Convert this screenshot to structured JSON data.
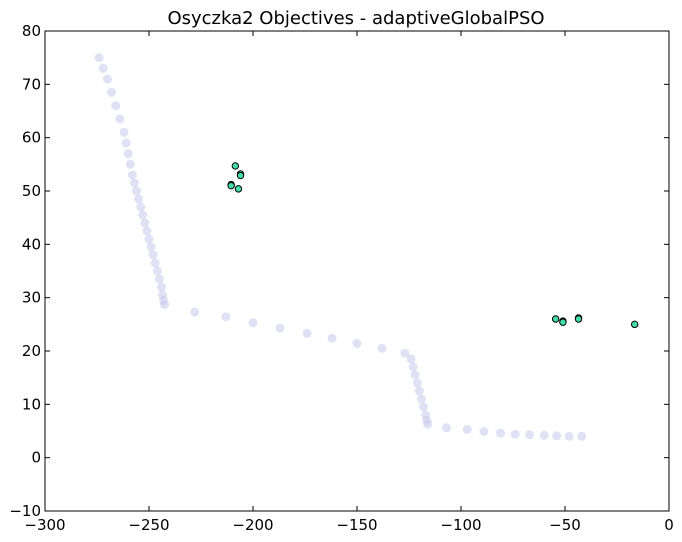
{
  "chart_data": {
    "type": "scatter",
    "title": "Osyczka2 Objectives - adaptiveGlobalPSO",
    "xlabel": "",
    "ylabel": "",
    "xlim": [
      -300,
      0
    ],
    "ylim": [
      -10,
      80
    ],
    "xticks": [
      -300,
      -250,
      -200,
      -150,
      -100,
      -50,
      0
    ],
    "yticks": [
      -10,
      0,
      10,
      20,
      30,
      40,
      50,
      60,
      70,
      80
    ],
    "grid": false,
    "legend": "none",
    "series": [
      {
        "role": "reference-front",
        "color": "#c8c8ec",
        "points": [
          [
            -274,
            75
          ],
          [
            -272,
            73
          ],
          [
            -270,
            71
          ],
          [
            -268,
            68.5
          ],
          [
            -266,
            66
          ],
          [
            -264,
            63.5
          ],
          [
            -262,
            61
          ],
          [
            -261,
            59
          ],
          [
            -260,
            57
          ],
          [
            -259,
            55
          ],
          [
            -258,
            53
          ],
          [
            -257,
            51.5
          ],
          [
            -256,
            50
          ],
          [
            -255,
            48.5
          ],
          [
            -254,
            47
          ],
          [
            -253,
            45.5
          ],
          [
            -252,
            44
          ],
          [
            -251,
            42.5
          ],
          [
            -250,
            41
          ],
          [
            -249,
            39.5
          ],
          [
            -248,
            38
          ],
          [
            -247,
            36.5
          ],
          [
            -246,
            35
          ],
          [
            -245,
            33.5
          ],
          [
            -244,
            32
          ],
          [
            -243.5,
            30.5
          ],
          [
            -243,
            29.5
          ],
          [
            -242.5,
            28.7
          ],
          [
            -228,
            27.3
          ],
          [
            -213,
            26.4
          ],
          [
            -200,
            25.3
          ],
          [
            -187,
            24.3
          ],
          [
            -174,
            23.3
          ],
          [
            -162,
            22.4
          ],
          [
            -150,
            21.4
          ],
          [
            -138,
            20.5
          ],
          [
            -127,
            19.6
          ],
          [
            -124,
            18.5
          ],
          [
            -123,
            17
          ],
          [
            -122,
            15.5
          ],
          [
            -121,
            14
          ],
          [
            -120,
            12.5
          ],
          [
            -119,
            11
          ],
          [
            -118,
            9.5
          ],
          [
            -117,
            8
          ],
          [
            -116.5,
            7
          ],
          [
            -116,
            6.3
          ],
          [
            -107,
            5.6
          ],
          [
            -97,
            5.3
          ],
          [
            -89,
            4.9
          ],
          [
            -81,
            4.6
          ],
          [
            -74,
            4.4
          ],
          [
            -67,
            4.3
          ],
          [
            -60,
            4.2
          ],
          [
            -54,
            4.1
          ],
          [
            -48,
            4.0
          ],
          [
            -42,
            4.0
          ]
        ]
      },
      {
        "role": "solutions",
        "color": "#40e0a8",
        "points": [
          [
            -208.5,
            54.7
          ],
          [
            -206,
            53.2
          ],
          [
            -206,
            52.9
          ],
          [
            -210.5,
            51.2
          ],
          [
            -210.5,
            51.0
          ],
          [
            -207,
            50.4
          ],
          [
            -54.5,
            26.0
          ],
          [
            -51,
            25.6
          ],
          [
            -51,
            25.4
          ],
          [
            -43.5,
            26.2
          ],
          [
            -43.5,
            26.0
          ],
          [
            -16.5,
            25.0
          ]
        ]
      }
    ]
  }
}
